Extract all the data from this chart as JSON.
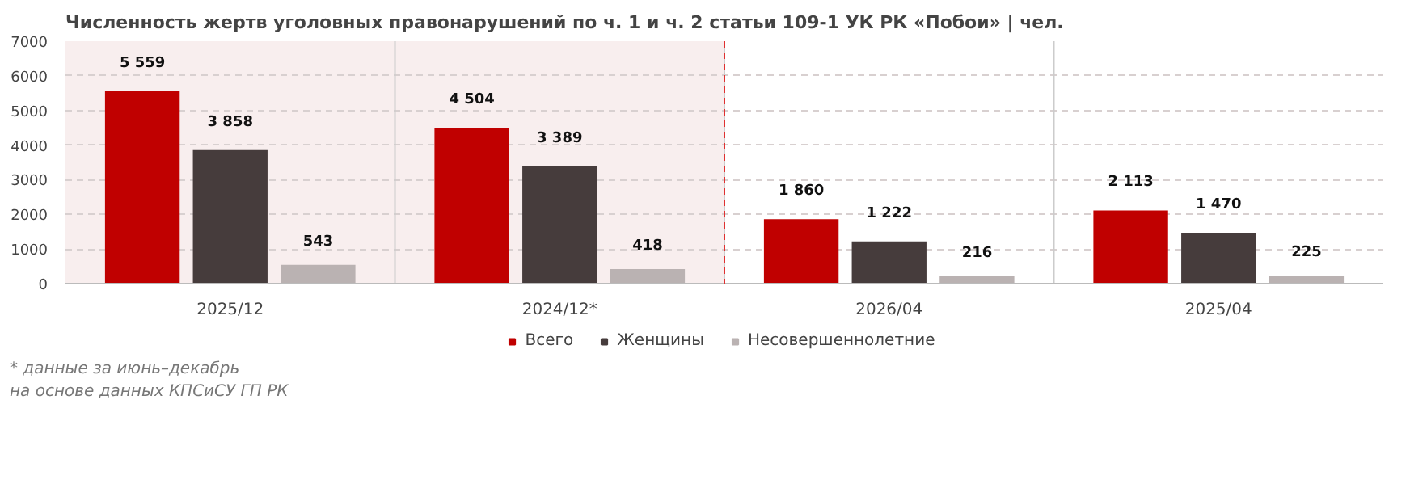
{
  "chart_data": {
    "type": "bar",
    "title": "Численность жертв уголовных правонарушений по ч. 1 и ч. 2 статьи 109-1 УК РК «Побои» | чел.",
    "categories": [
      "2025/12",
      "2024/12*",
      "2026/04",
      "2025/04"
    ],
    "series": [
      {
        "name": "Всего",
        "color": "#c00000",
        "values": [
          5559,
          4504,
          1860,
          2113
        ],
        "value_labels": [
          "5 559",
          "4 504",
          "1 860",
          "2 113"
        ]
      },
      {
        "name": "Женщины",
        "color": "#463c3c",
        "values": [
          3858,
          3389,
          1222,
          1470
        ],
        "value_labels": [
          "3 858",
          "3 389",
          "1 222",
          "1 470"
        ]
      },
      {
        "name": "Несовершеннолетние",
        "color": "#bab2b2",
        "values": [
          543,
          418,
          216,
          225
        ],
        "value_labels": [
          "543",
          "418",
          "216",
          "225"
        ]
      }
    ],
    "ylim": [
      0,
      7000
    ],
    "yticks": [
      0,
      1000,
      2000,
      3000,
      4000,
      5000,
      6000,
      7000
    ],
    "grid": "y",
    "legend": "bottom",
    "bands": [
      {
        "axis": "x",
        "from": "2025/12",
        "to": "2024/12*",
        "color": "#f8eeee"
      }
    ],
    "ref_lines": [
      {
        "axis": "x",
        "value": "2024/12*",
        "color": "#e03030",
        "line_style": "dashed"
      }
    ],
    "annotations": [
      "* данные за июнь–декабрь",
      "на основе данных КПСиСУ ГП РК"
    ]
  }
}
